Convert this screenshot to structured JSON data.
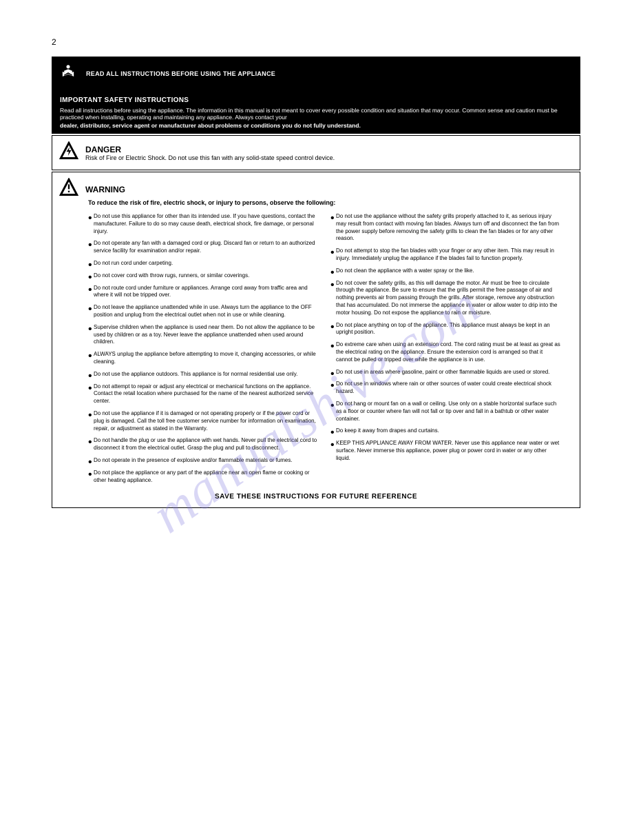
{
  "page_number": "2",
  "watermark": "manualshive.com",
  "bar1": {
    "text": "READ ALL INSTRUCTIONS BEFORE USING THE APPLIANCE"
  },
  "bar2": {
    "line1": "IMPORTANT SAFETY INSTRUCTIONS",
    "line2": "Read all instructions before using the appliance. The information in this manual is not meant to cover every possible condition and situation that may occur. Common sense and caution must be practiced when installing, operating and maintaining any appliance. Always contact your",
    "line3": "dealer, distributor, service agent or manufacturer about problems or conditions you do not fully understand."
  },
  "danger": {
    "head": "DANGER",
    "body": "Risk of Fire or Electric Shock. Do not use this fan with any solid-state speed control device."
  },
  "warning": {
    "head": "WARNING",
    "body": "To reduce the risk of fire, electric shock, or injury to persons, observe the following:"
  },
  "cols": {
    "left": [
      "Do not use this appliance for other than its intended use. If you have questions, contact the manufacturer. Failure to do so may cause death, electrical shock, fire damage, or personal injury.",
      "Do not operate any fan with a damaged cord or plug. Discard fan or return to an authorized service facility for examination and/or repair.",
      "Do not run cord under carpeting.",
      "Do not cover cord with throw rugs, runners, or similar coverings.",
      "Do not route cord under furniture or appliances. Arrange cord away from traffic area and where it will not be tripped over.",
      "Do not leave the appliance unattended while in use. Always turn the appliance to the OFF position and unplug from the electrical outlet when not in use or while cleaning.",
      "Supervise children when the appliance is used near them. Do not allow the appliance to be used by children or as a toy. Never leave the appliance unattended when used around children.",
      "ALWAYS unplug the appliance before attempting to move it, changing accessories, or while cleaning.",
      "Do not use the appliance outdoors. This appliance is for normal residential use only.",
      "Do not attempt to repair or adjust any electrical or mechanical functions on the appliance. Contact the retail location where purchased for the name of the nearest authorized service center.",
      "Do not use the appliance if it is damaged or not operating properly or if the power cord or plug is damaged. Call the toll free customer service number for information on examination, repair, or adjustment as stated in the Warranty.",
      "Do not handle the plug or use the appliance with wet hands. Never pull the electrical cord to disconnect it from the electrical outlet. Grasp the plug and pull to disconnect.",
      "Do not operate in the presence of explosive and/or flammable materials or fumes.",
      "Do not place the appliance or any part of the appliance near an open flame or cooking or other heating appliance."
    ],
    "right": [
      "Do not use the appliance without the safety grills properly attached to it, as serious injury may result from contact with moving fan blades. Always turn off and disconnect the fan from the power supply before removing the safety grills to clean the fan blades or for any other reason.",
      "Do not attempt to stop the fan blades with your finger or any other item. This may result in injury. Immediately unplug the appliance if the blades fail to function properly.",
      "Do not clean the appliance with a water spray or the like.",
      "Do not cover the safety grills, as this will damage the motor. Air must be free to circulate through the appliance. Be sure to ensure that the grills permit the free passage of air and nothing prevents air from passing through the grills. After storage, remove any obstruction that has accumulated. Do not immerse the appliance in water or allow water to drip into the motor housing. Do not expose the appliance to rain or moisture.",
      "Do not place anything on top of the appliance. This appliance must always be kept in an upright position.",
      "Do extreme care when using an extension cord. The cord rating must be at least as great as the electrical rating on the appliance. Ensure the extension cord is arranged so that it cannot be pulled or tripped over while the appliance is in use.",
      "Do not use in areas where gasoline, paint or other flammable liquids are used or stored.",
      "Do not use in windows where rain or other sources of water could create electrical shock hazard.",
      "Do not hang or mount fan on a wall or ceiling. Use only on a stable horizontal surface such as a floor or counter where fan will not fall or tip over and fall in a bathtub or other water container.",
      "Do keep it away from drapes and curtains.",
      "KEEP THIS APPLIANCE AWAY FROM WATER. Never use this appliance near water or wet surface. Never immerse this appliance, power plug or power cord in water or any other liquid."
    ]
  },
  "save": "SAVE THESE INSTRUCTIONS FOR FUTURE REFERENCE",
  "icons": {
    "reader": "reader-icon",
    "bolt": "bolt-triangle-icon",
    "excl": "exclamation-triangle-icon"
  }
}
